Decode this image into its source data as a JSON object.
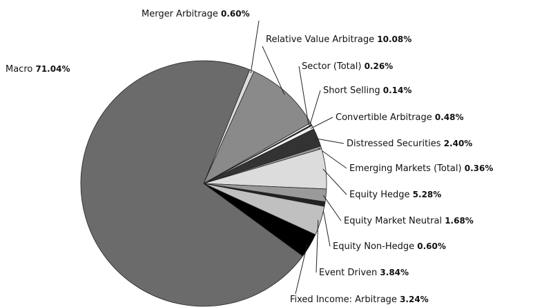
{
  "chart_data": {
    "type": "pie",
    "categories": [
      "Merger Arbitrage",
      "Relative Value Arbitrage",
      "Sector (Total)",
      "Short Selling",
      "Convertible Arbitrage",
      "Distressed Securities",
      "Emerging Markets (Total)",
      "Equity Hedge",
      "Equity Market Neutral",
      "Equity Non-Hedge",
      "Event Driven",
      "Fixed Income: Arbitrage",
      "Macro"
    ],
    "values": [
      0.6,
      10.08,
      0.26,
      0.14,
      0.48,
      2.4,
      0.36,
      5.28,
      1.68,
      0.6,
      3.84,
      3.24,
      71.04
    ],
    "value_labels": [
      "0.60%",
      "10.08%",
      "0.26%",
      "0.14%",
      "0.48%",
      "2.40%",
      "0.36%",
      "5.28%",
      "1.68%",
      "0.60%",
      "3.84%",
      "3.24%",
      "71.04%"
    ],
    "colors": [
      "#dcdcdc",
      "#8a8a8a",
      "#f2f2f2",
      "#333333",
      "#f2f2f2",
      "#333333",
      "#999999",
      "#dcdcdc",
      "#9a9a9a",
      "#222222",
      "#c0c0c0",
      "#000000",
      "#6b6b6b"
    ]
  }
}
